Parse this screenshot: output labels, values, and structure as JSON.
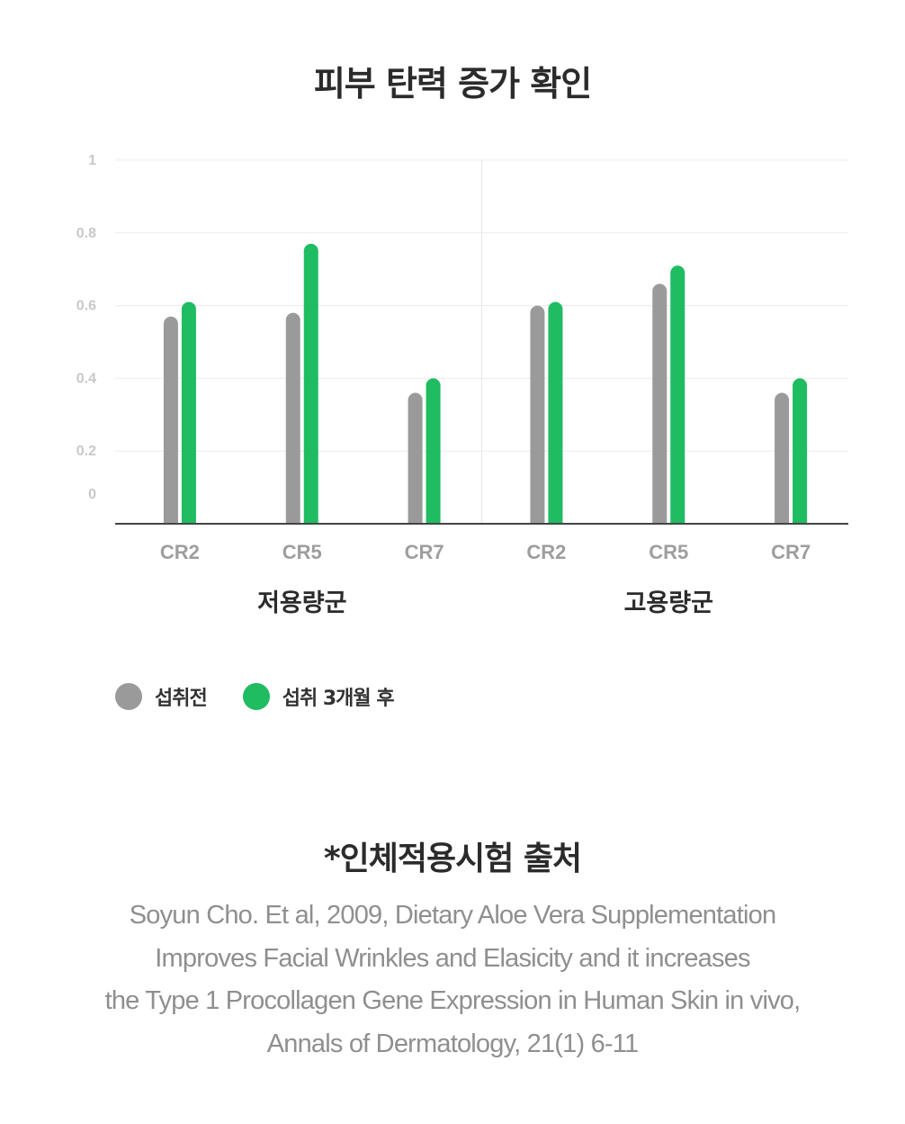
{
  "title": "피부 탄력 증가 확인",
  "legend": {
    "items": [
      {
        "label": "섭취전",
        "color": "#9a9a9a"
      },
      {
        "label": "섭취 3개월 후",
        "color": "#1fbc62"
      }
    ]
  },
  "chart_data": {
    "type": "bar",
    "ylim": [
      0,
      1
    ],
    "yticks": [
      "0",
      "0.2",
      "0.4",
      "0.6",
      "0.8",
      "1"
    ],
    "groups": [
      {
        "label": "저용량군",
        "categories": [
          "CR2",
          "CR5",
          "CR7"
        ]
      },
      {
        "label": "고용량군",
        "categories": [
          "CR2",
          "CR5",
          "CR7"
        ]
      }
    ],
    "categories": [
      "CR2",
      "CR5",
      "CR7",
      "CR2",
      "CR5",
      "CR7"
    ],
    "series": [
      {
        "name": "섭취전",
        "color": "#9a9a9a",
        "values": [
          0.57,
          0.58,
          0.36,
          0.6,
          0.66,
          0.36
        ]
      },
      {
        "name": "섭취 3개월 후",
        "color": "#1fbc62",
        "values": [
          0.61,
          0.77,
          0.4,
          0.61,
          0.71,
          0.4
        ]
      }
    ],
    "grid": true,
    "legend_position": "bottom-left"
  },
  "source": {
    "title": "*인체적용시험 출처",
    "lines": [
      "Soyun Cho. Et al, 2009, Dietary Aloe Vera Supplementation",
      "Improves Facial Wrinkles and Elasicity and it increases",
      "the Type 1 Procollagen Gene Expression in Human Skin in vivo,",
      "Annals of Dermatology, 21(1) 6-11"
    ]
  }
}
